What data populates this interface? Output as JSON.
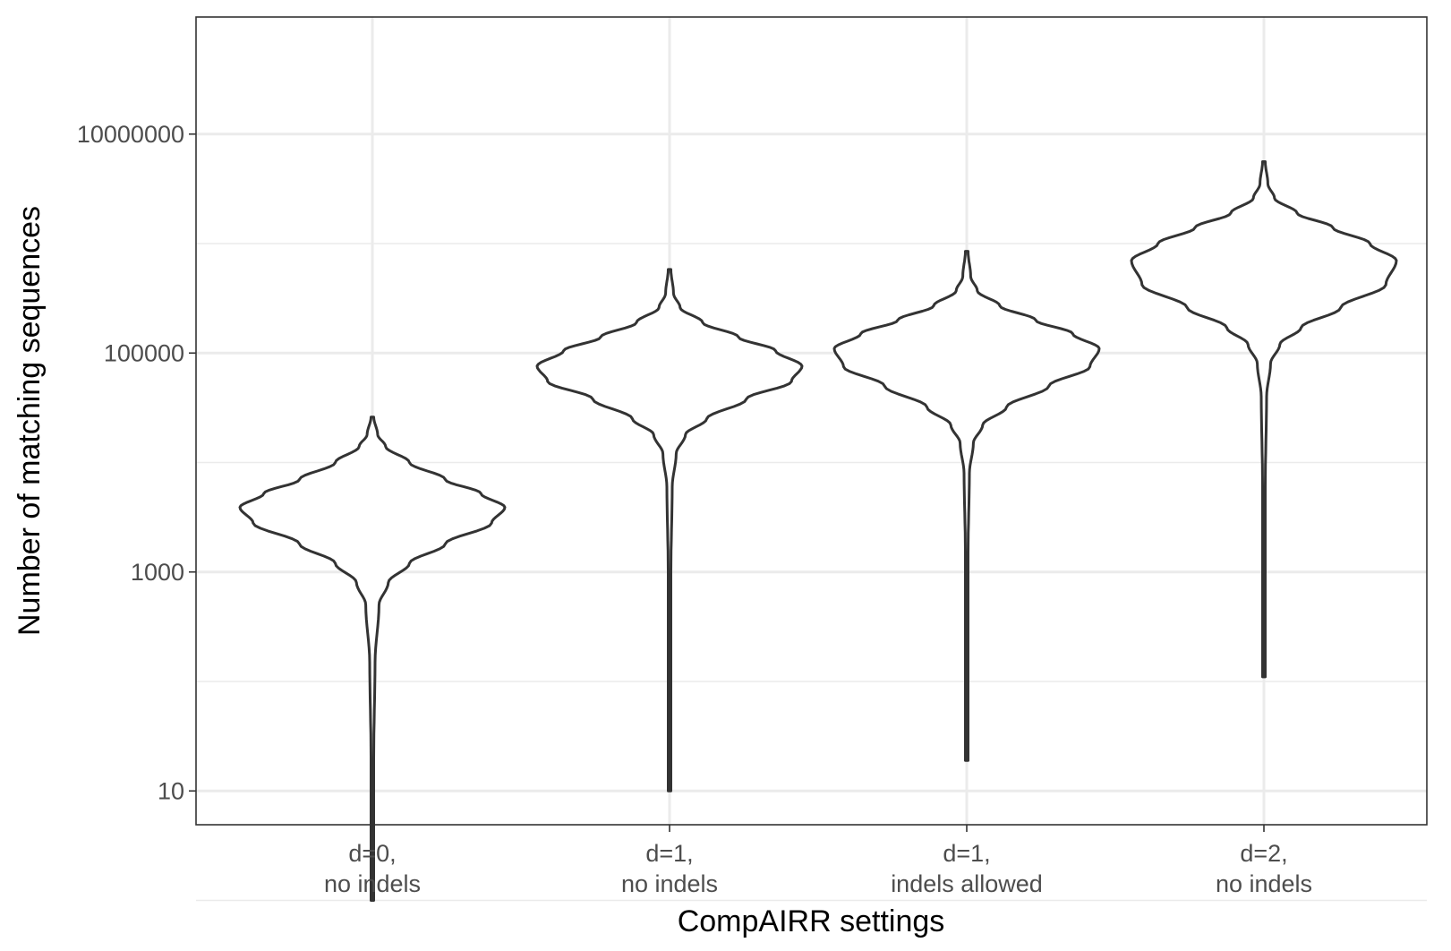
{
  "chart_data": {
    "type": "violin",
    "xlabel": "CompAIRR settings",
    "ylabel": "Number of matching sequences",
    "y_scale": "log10",
    "ylim": [
      1,
      10000000
    ],
    "y_ticks": [
      10,
      1000,
      100000,
      10000000
    ],
    "y_tick_labels": [
      "10",
      "1000",
      "100000",
      "10000000"
    ],
    "grid": true,
    "theme": "black-and-white panel border",
    "categories": [
      {
        "line1": "d=0,",
        "line2": "no indels"
      },
      {
        "line1": "d=1,",
        "line2": "no indels"
      },
      {
        "line1": "d=1,",
        "line2": "indels allowed"
      },
      {
        "line1": "d=2,",
        "line2": "no indels"
      }
    ],
    "violins": [
      {
        "category": "d=0, no indels",
        "min": 1,
        "max": 26000,
        "mode": 3900,
        "profile": [
          [
            1,
            0.01
          ],
          [
            20,
            0.01
          ],
          [
            150,
            0.02
          ],
          [
            500,
            0.05
          ],
          [
            800,
            0.12
          ],
          [
            1200,
            0.28
          ],
          [
            1800,
            0.55
          ],
          [
            2800,
            0.9
          ],
          [
            3900,
            1.0
          ],
          [
            5200,
            0.82
          ],
          [
            7000,
            0.55
          ],
          [
            10000,
            0.28
          ],
          [
            14000,
            0.1
          ],
          [
            18000,
            0.04
          ],
          [
            26000,
            0.01
          ]
        ]
      },
      {
        "category": "d=1, no indels",
        "min": 10,
        "max": 580000,
        "mode": 76000,
        "profile": [
          [
            10,
            0.01
          ],
          [
            1000,
            0.01
          ],
          [
            6000,
            0.02
          ],
          [
            12000,
            0.05
          ],
          [
            18000,
            0.12
          ],
          [
            25000,
            0.28
          ],
          [
            38000,
            0.58
          ],
          [
            55000,
            0.92
          ],
          [
            76000,
            1.0
          ],
          [
            105000,
            0.8
          ],
          [
            140000,
            0.52
          ],
          [
            190000,
            0.25
          ],
          [
            260000,
            0.08
          ],
          [
            350000,
            0.03
          ],
          [
            580000,
            0.01
          ]
        ]
      },
      {
        "category": "d=1, indels allowed",
        "min": 19,
        "max": 850000,
        "mode": 110000,
        "profile": [
          [
            19,
            0.01
          ],
          [
            1500,
            0.01
          ],
          [
            8000,
            0.02
          ],
          [
            15000,
            0.05
          ],
          [
            22000,
            0.12
          ],
          [
            32000,
            0.3
          ],
          [
            50000,
            0.62
          ],
          [
            75000,
            0.93
          ],
          [
            110000,
            1.0
          ],
          [
            150000,
            0.8
          ],
          [
            200000,
            0.52
          ],
          [
            270000,
            0.25
          ],
          [
            370000,
            0.08
          ],
          [
            500000,
            0.03
          ],
          [
            850000,
            0.01
          ]
        ]
      },
      {
        "category": "d=2, no indels",
        "min": 110,
        "max": 5600000,
        "mode": 700000,
        "profile": [
          [
            110,
            0.01
          ],
          [
            6000,
            0.01
          ],
          [
            40000,
            0.02
          ],
          [
            80000,
            0.05
          ],
          [
            120000,
            0.12
          ],
          [
            170000,
            0.28
          ],
          [
            260000,
            0.58
          ],
          [
            420000,
            0.92
          ],
          [
            700000,
            1.0
          ],
          [
            1000000,
            0.8
          ],
          [
            1400000,
            0.52
          ],
          [
            1900000,
            0.25
          ],
          [
            2600000,
            0.08
          ],
          [
            3500000,
            0.03
          ],
          [
            5600000,
            0.01
          ]
        ]
      }
    ]
  }
}
